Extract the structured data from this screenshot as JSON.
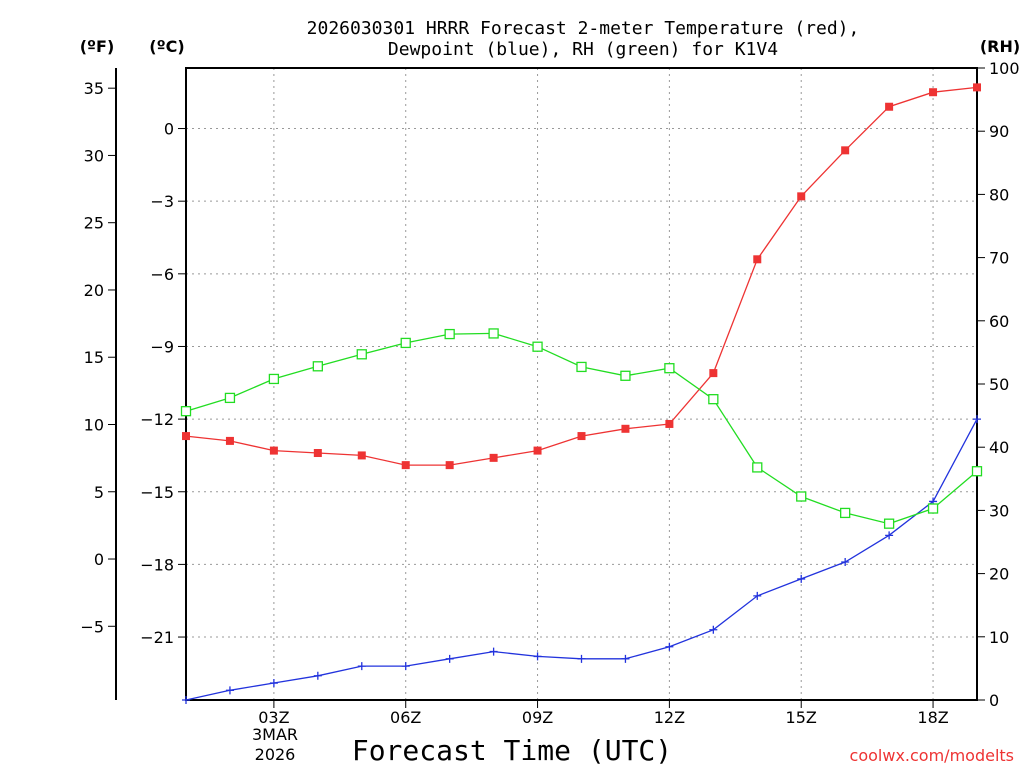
{
  "chart_data": {
    "type": "line",
    "title_line1": "2026030301 HRRR Forecast 2-meter Temperature (red),",
    "title_line2": "Dewpoint (blue), RH (green) for K1V4",
    "xlabel": "Forecast Time (UTC)",
    "left_f_header": "(ºF)",
    "left_c_header": "(ºC)",
    "right_header": "(RH)",
    "credit": "coolwx.com/modelts",
    "date_label_day": "3MAR",
    "date_label_year": "2026",
    "colors": {
      "temperature": "#ee3333",
      "dewpoint": "#2233dd",
      "rh": "#22dd22"
    },
    "x_hours": [
      1,
      2,
      3,
      4,
      5,
      6,
      7,
      8,
      9,
      10,
      11,
      12,
      13,
      14,
      15,
      16,
      17,
      18,
      19
    ],
    "x_ticks": [
      {
        "hour": 3,
        "label": "03Z"
      },
      {
        "hour": 6,
        "label": "06Z"
      },
      {
        "hour": 9,
        "label": "09Z"
      },
      {
        "hour": 12,
        "label": "12Z"
      },
      {
        "hour": 15,
        "label": "15Z"
      },
      {
        "hour": 18,
        "label": "18Z"
      }
    ],
    "xlim": [
      1,
      19
    ],
    "c_axis": {
      "min": -23.6,
      "max": 2.5,
      "ticks": [
        0,
        -3,
        -6,
        -9,
        -12,
        -15,
        -18,
        -21
      ]
    },
    "f_axis": {
      "ticks": [
        35,
        30,
        25,
        20,
        15,
        10,
        5,
        0,
        -5
      ]
    },
    "rh_axis": {
      "min": 0,
      "max": 100,
      "ticks": [
        0,
        10,
        20,
        30,
        40,
        50,
        60,
        70,
        80,
        90,
        100
      ]
    },
    "series": [
      {
        "name": "Temperature",
        "key": "temperature",
        "axis": "c",
        "marker": "filled-square",
        "values": [
          -12.7,
          -12.9,
          -13.3,
          -13.4,
          -13.5,
          -13.9,
          -13.9,
          -13.6,
          -13.3,
          -12.7,
          -12.4,
          -12.2,
          -10.1,
          -5.4,
          -2.8,
          -0.9,
          0.9,
          1.5,
          1.7
        ]
      },
      {
        "name": "Dewpoint",
        "key": "dewpoint",
        "axis": "c",
        "marker": "plus",
        "values": [
          -23.6,
          -23.2,
          -22.9,
          -22.6,
          -22.2,
          -22.2,
          -21.9,
          -21.6,
          -21.8,
          -21.9,
          -21.9,
          -21.4,
          -20.7,
          -19.3,
          -18.6,
          -17.9,
          -16.8,
          -15.4,
          -12.0
        ]
      },
      {
        "name": "RH",
        "key": "rh",
        "axis": "rh",
        "marker": "open-square",
        "values": [
          45.7,
          47.8,
          50.8,
          52.8,
          54.7,
          56.5,
          57.9,
          58.0,
          55.9,
          52.7,
          51.3,
          52.5,
          47.6,
          36.8,
          32.2,
          29.6,
          27.9,
          30.3,
          36.2
        ]
      }
    ]
  }
}
